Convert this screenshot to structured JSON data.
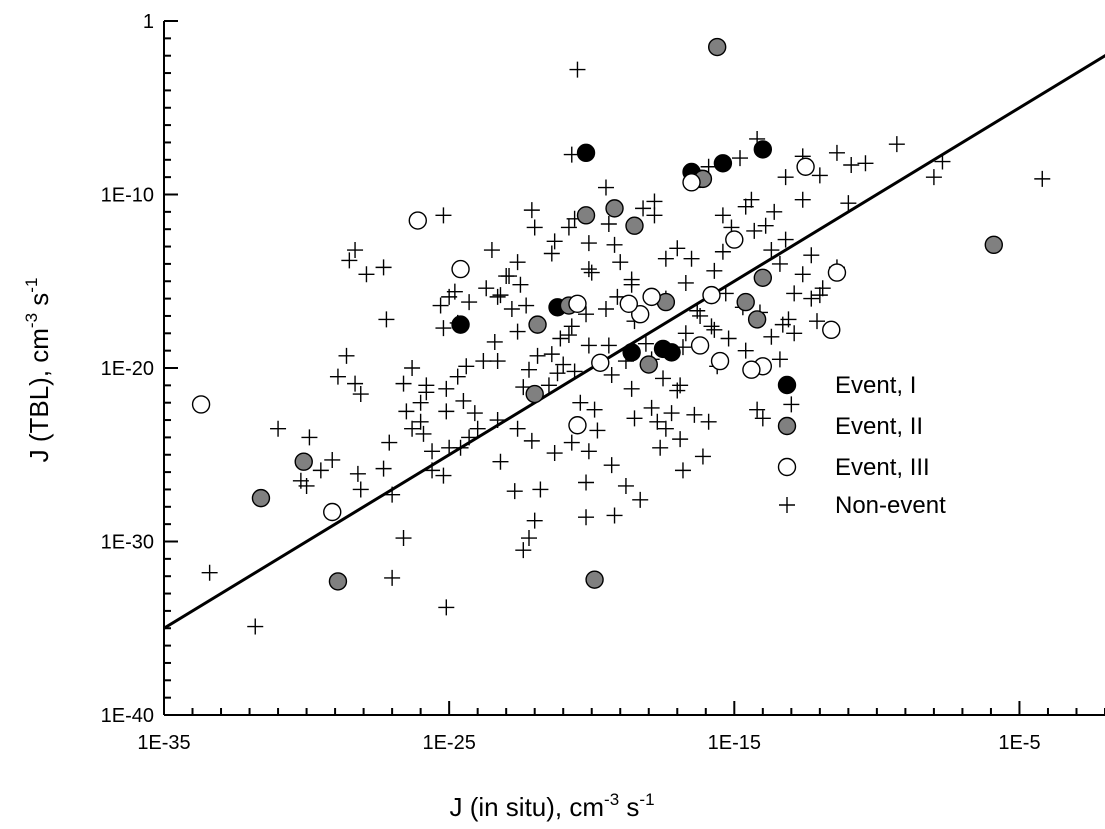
{
  "chart_data": {
    "type": "scatter",
    "x_scale": "log10",
    "y_scale": "log10",
    "xlim": [
      1e-35,
      0.01
    ],
    "ylim": [
      1e-40,
      1
    ],
    "xticks": [
      {
        "value": 1e-35,
        "label": "1E-35"
      },
      {
        "value": 1e-25,
        "label": "1E-25"
      },
      {
        "value": 1e-15,
        "label": "1E-15"
      },
      {
        "value": 1e-05,
        "label": "1E-5"
      }
    ],
    "yticks": [
      {
        "value": 1e-40,
        "label": "1E-40"
      },
      {
        "value": 1e-30,
        "label": "1E-30"
      },
      {
        "value": 1e-20,
        "label": "1E-20"
      },
      {
        "value": 1e-10,
        "label": "1E-10"
      },
      {
        "value": 1,
        "label": "1"
      }
    ],
    "xlabel": {
      "base": "J (in situ), cm",
      "exp1": "-3",
      "mid": " s",
      "exp2": "-1"
    },
    "ylabel": {
      "base": "J (TBL), cm",
      "exp1": "-3",
      "mid": " s",
      "exp2": "-1"
    },
    "grid": false,
    "legend_position": "right",
    "reference_line": {
      "type": "y=x",
      "color": "#000000"
    },
    "colors": {
      "event_I": "#000000",
      "event_II": "#808080",
      "event_III": "#ffffff",
      "non_event": "#000000"
    },
    "series": [
      {
        "name": "Event, I",
        "marker": "filled-circle",
        "points": [
          [
            -20.2,
            -7.6
          ],
          [
            -24.6,
            -17.5
          ],
          [
            -14.0,
            -7.4
          ],
          [
            -16.5,
            -8.7
          ],
          [
            -15.4,
            -8.2
          ],
          [
            -17.5,
            -18.9
          ],
          [
            -18.6,
            -19.1
          ],
          [
            -16.2,
            -9.1
          ],
          [
            -21.2,
            -16.5
          ],
          [
            -17.2,
            -19.1
          ]
        ]
      },
      {
        "name": "Event, II",
        "marker": "filled-circle",
        "points": [
          [
            -15.6,
            -1.5
          ],
          [
            -18.0,
            -19.8
          ],
          [
            -17.4,
            -16.2
          ],
          [
            -16.1,
            -9.1
          ],
          [
            -20.8,
            -16.4
          ],
          [
            -19.2,
            -10.8
          ],
          [
            -22.0,
            -21.5
          ],
          [
            -18.5,
            -11.8
          ],
          [
            -20.2,
            -11.2
          ],
          [
            -21.9,
            -17.5
          ],
          [
            -14.2,
            -17.2
          ],
          [
            -14.6,
            -16.2
          ],
          [
            -14.0,
            -14.8
          ],
          [
            -5.9,
            -12.9
          ],
          [
            -30.1,
            -25.4
          ],
          [
            -31.6,
            -27.5
          ],
          [
            -28.9,
            -32.3
          ],
          [
            -19.9,
            -32.2
          ]
        ]
      },
      {
        "name": "Event, III",
        "marker": "open-circle",
        "points": [
          [
            -26.1,
            -11.5
          ],
          [
            -24.6,
            -14.3
          ],
          [
            -16.5,
            -9.3
          ],
          [
            -15.0,
            -12.6
          ],
          [
            -12.5,
            -8.4
          ],
          [
            -11.4,
            -14.5
          ],
          [
            -17.9,
            -15.9
          ],
          [
            -18.3,
            -16.9
          ],
          [
            -18.7,
            -16.3
          ],
          [
            -15.8,
            -15.8
          ],
          [
            -16.2,
            -18.7
          ],
          [
            -20.5,
            -16.3
          ],
          [
            -19.7,
            -19.7
          ],
          [
            -15.5,
            -19.6
          ],
          [
            -14.0,
            -19.9
          ],
          [
            -14.4,
            -20.1
          ],
          [
            -11.6,
            -17.8
          ],
          [
            -20.5,
            -23.3
          ],
          [
            -29.1,
            -28.3
          ],
          [
            -33.7,
            -22.1
          ]
        ]
      },
      {
        "name": "Non-event",
        "marker": "plus",
        "points": [
          [
            -20.5,
            -2.8
          ],
          [
            -20.7,
            -7.7
          ],
          [
            -14.2,
            -6.8
          ],
          [
            -9.3,
            -7.1
          ],
          [
            -10.9,
            -8.3
          ],
          [
            -14.8,
            -7.9
          ],
          [
            -15.9,
            -8.4
          ],
          [
            -19.5,
            -9.6
          ],
          [
            -20.6,
            -11.4
          ],
          [
            -20.8,
            -11.9
          ],
          [
            -19.4,
            -11.7
          ],
          [
            -18.2,
            -10.8
          ],
          [
            -17.8,
            -10.4
          ],
          [
            -17.8,
            -11.2
          ],
          [
            -19.2,
            -12.9
          ],
          [
            -20.1,
            -12.8
          ],
          [
            -21.3,
            -12.7
          ],
          [
            -22.0,
            -11.9
          ],
          [
            -22.1,
            -10.9
          ],
          [
            -23.5,
            -13.2
          ],
          [
            -22.9,
            -14.7
          ],
          [
            -20.0,
            -14.5
          ],
          [
            -19.0,
            -13.9
          ],
          [
            -18.6,
            -14.9
          ],
          [
            -17.4,
            -13.7
          ],
          [
            -17.0,
            -13.1
          ],
          [
            -16.5,
            -13.7
          ],
          [
            -15.7,
            -14.4
          ],
          [
            -15.4,
            -13.3
          ],
          [
            -14.3,
            -12.1
          ],
          [
            -13.7,
            -13.2
          ],
          [
            -13.2,
            -12.6
          ],
          [
            -13.6,
            -11.0
          ],
          [
            -14.4,
            -10.3
          ],
          [
            -14.6,
            -10.7
          ],
          [
            -15.1,
            -11.9
          ],
          [
            -15.4,
            -11.2
          ],
          [
            -14.7,
            -16.5
          ],
          [
            -14.1,
            -16.8
          ],
          [
            -13.1,
            -17.2
          ],
          [
            -12.3,
            -16.0
          ],
          [
            -12.9,
            -15.7
          ],
          [
            -13.4,
            -14.0
          ],
          [
            -15.3,
            -15.7
          ],
          [
            -16.2,
            -17.0
          ],
          [
            -15.7,
            -17.8
          ],
          [
            -16.8,
            -18.8
          ],
          [
            -17.5,
            -20.6
          ],
          [
            -17.9,
            -19.5
          ],
          [
            -18.1,
            -18.6
          ],
          [
            -18.5,
            -17.3
          ],
          [
            -19.5,
            -16.6
          ],
          [
            -20.2,
            -16.9
          ],
          [
            -20.7,
            -17.6
          ],
          [
            -21.1,
            -18.3
          ],
          [
            -21.4,
            -19.2
          ],
          [
            -21.2,
            -20.3
          ],
          [
            -22.2,
            -20.1
          ],
          [
            -22.4,
            -21.1
          ],
          [
            -22.6,
            -17.9
          ],
          [
            -23.4,
            -18.5
          ],
          [
            -23.3,
            -19.6
          ],
          [
            -24.4,
            -19.9
          ],
          [
            -24.7,
            -20.5
          ],
          [
            -25.1,
            -21.2
          ],
          [
            -25.8,
            -21.4
          ],
          [
            -25.2,
            -17.7
          ],
          [
            -26.5,
            -22.5
          ],
          [
            -29.9,
            -24.0
          ],
          [
            -31.0,
            -23.5
          ],
          [
            -29.5,
            -25.9
          ],
          [
            -30.2,
            -26.5
          ],
          [
            -27.3,
            -25.8
          ],
          [
            -25.6,
            -25.9
          ],
          [
            -25.2,
            -26.2
          ],
          [
            -24.6,
            -24.6
          ],
          [
            -24.0,
            -23.5
          ],
          [
            -22.1,
            -24.2
          ],
          [
            -21.3,
            -24.9
          ],
          [
            -20.7,
            -24.3
          ],
          [
            -20.2,
            -26.6
          ],
          [
            -20.1,
            -24.8
          ],
          [
            -20.2,
            -28.6
          ],
          [
            -19.2,
            -28.5
          ],
          [
            -21.8,
            -27.0
          ],
          [
            -22.0,
            -28.8
          ],
          [
            -22.2,
            -29.8
          ],
          [
            -22.4,
            -30.5
          ],
          [
            -25.1,
            -33.8
          ],
          [
            -31.8,
            -34.9
          ],
          [
            -33.4,
            -31.8
          ],
          [
            -28.1,
            -27.0
          ],
          [
            -27.0,
            -27.3
          ],
          [
            -28.1,
            -21.5
          ],
          [
            -26.3,
            -23.5
          ],
          [
            -26.0,
            -22.0
          ],
          [
            -25.0,
            -24.6
          ],
          [
            -24.3,
            -24.0
          ],
          [
            -23.8,
            -19.6
          ],
          [
            -22.8,
            -16.6
          ],
          [
            -22.3,
            -16.4
          ],
          [
            -21.9,
            -19.3
          ],
          [
            -21.5,
            -21.0
          ],
          [
            -20.6,
            -20.2
          ],
          [
            -19.3,
            -20.4
          ],
          [
            -18.6,
            -21.2
          ],
          [
            -17.9,
            -22.3
          ],
          [
            -17.4,
            -23.5
          ],
          [
            -16.9,
            -24.1
          ],
          [
            -16.4,
            -22.7
          ],
          [
            -17.2,
            -22.6
          ],
          [
            -17.7,
            -23.1
          ],
          [
            -18.5,
            -22.9
          ],
          [
            -19.9,
            -22.4
          ],
          [
            -20.4,
            -22.0
          ],
          [
            -21.0,
            -19.8
          ],
          [
            -20.1,
            -18.7
          ],
          [
            -19.1,
            -15.9
          ],
          [
            -18.6,
            -15.2
          ],
          [
            -17.4,
            -16.0
          ],
          [
            -16.7,
            -15.1
          ],
          [
            -16.3,
            -16.7
          ],
          [
            -15.8,
            -17.6
          ],
          [
            -15.2,
            -18.3
          ],
          [
            -14.6,
            -19.0
          ],
          [
            -13.7,
            -18.2
          ],
          [
            -13.3,
            -17.5
          ],
          [
            -12.0,
            -15.8
          ],
          [
            -11.4,
            -14.2
          ],
          [
            -12.3,
            -13.5
          ],
          [
            -12.6,
            -14.6
          ],
          [
            -13.9,
            -11.8
          ],
          [
            -12.6,
            -10.3
          ],
          [
            -11.0,
            -10.5
          ],
          [
            -11.4,
            -7.6
          ],
          [
            -8.0,
            -9.0
          ],
          [
            -7.7,
            -8.1
          ],
          [
            -4.2,
            -9.1
          ],
          [
            -10.4,
            -8.2
          ],
          [
            -12.0,
            -8.9
          ],
          [
            -13.2,
            -9.0
          ],
          [
            -12.6,
            -7.8
          ],
          [
            -13.0,
            -22.1
          ],
          [
            -14.2,
            -22.4
          ],
          [
            -16.1,
            -25.1
          ],
          [
            -16.8,
            -25.9
          ],
          [
            -18.3,
            -27.6
          ],
          [
            -18.8,
            -26.8
          ],
          [
            -19.3,
            -25.6
          ],
          [
            -22.7,
            -27.1
          ],
          [
            -23.2,
            -25.4
          ],
          [
            -26.6,
            -29.8
          ],
          [
            -27.0,
            -32.1
          ],
          [
            -28.3,
            -13.2
          ],
          [
            -28.5,
            -13.8
          ],
          [
            -27.3,
            -14.2
          ],
          [
            -25.2,
            -11.2
          ],
          [
            -23.7,
            -15.4
          ],
          [
            -26.3,
            -20.0
          ],
          [
            -26.0,
            -23.1
          ],
          [
            -25.9,
            -23.8
          ],
          [
            -25.6,
            -24.8
          ],
          [
            -24.1,
            -22.6
          ],
          [
            -27.9,
            -14.6
          ],
          [
            -27.2,
            -17.2
          ],
          [
            -28.6,
            -19.3
          ],
          [
            -28.3,
            -20.9
          ],
          [
            -24.3,
            -16.2
          ],
          [
            -24.8,
            -15.6
          ],
          [
            -23.3,
            -15.9
          ],
          [
            -25.3,
            -16.4
          ],
          [
            -25.0,
            -15.9
          ],
          [
            -22.5,
            -15.2
          ],
          [
            -20.8,
            -18.1
          ],
          [
            -19.4,
            -18.7
          ],
          [
            -18.8,
            -19.6
          ],
          [
            -16.7,
            -18.0
          ],
          [
            -15.6,
            -19.9
          ],
          [
            -12.9,
            -18.0
          ],
          [
            -11.9,
            -15.4
          ],
          [
            -12.1,
            -17.3
          ],
          [
            -13.4,
            -19.5
          ],
          [
            -14.0,
            -22.9
          ],
          [
            -15.9,
            -23.1
          ],
          [
            -16.9,
            -21.0
          ],
          [
            -17.0,
            -21.3
          ],
          [
            -20.1,
            -14.3
          ],
          [
            -21.4,
            -13.4
          ],
          [
            -22.6,
            -13.9
          ],
          [
            -23.0,
            -14.7
          ],
          [
            -23.2,
            -15.8
          ],
          [
            -24.7,
            -17.4
          ],
          [
            -25.8,
            -21.0
          ],
          [
            -27.1,
            -24.3
          ],
          [
            -28.2,
            -26.1
          ],
          [
            -29.1,
            -25.3
          ],
          [
            -30.0,
            -26.8
          ],
          [
            -28.9,
            -20.5
          ],
          [
            -26.6,
            -20.9
          ],
          [
            -24.5,
            -21.9
          ],
          [
            -25.1,
            -22.5
          ],
          [
            -23.3,
            -23.0
          ],
          [
            -22.6,
            -23.5
          ],
          [
            -19.8,
            -23.6
          ],
          [
            -17.6,
            -24.6
          ]
        ]
      }
    ]
  }
}
